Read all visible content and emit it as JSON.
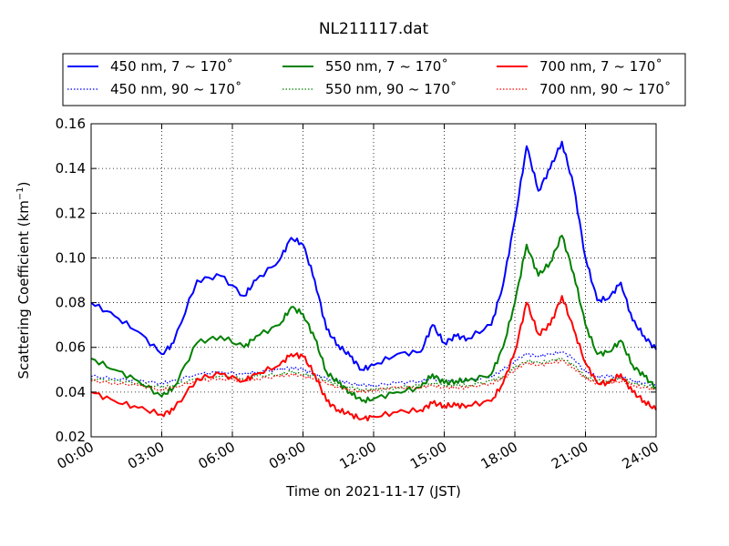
{
  "chart_data": {
    "type": "line",
    "title": "NL211117.dat",
    "xlabel": "Time on 2021-11-17 (JST)",
    "ylabel": "Scattering Coefficient (km",
    "ylabel_sup": "−1",
    "ylabel_end": ")",
    "xlim": [
      "00:00",
      "24:00"
    ],
    "ylim": [
      0.02,
      0.16
    ],
    "grid": true,
    "legend_placement": "top (above plot)",
    "x_ticks": [
      "00:00",
      "03:00",
      "06:00",
      "09:00",
      "12:00",
      "15:00",
      "18:00",
      "21:00",
      "24:00"
    ],
    "y_ticks": [
      "0.02",
      "0.04",
      "0.06",
      "0.08",
      "0.10",
      "0.12",
      "0.14",
      "0.16"
    ],
    "x": [
      "00:00",
      "01:00",
      "02:00",
      "03:00",
      "03:30",
      "04:30",
      "05:30",
      "06:30",
      "07:00",
      "08:00",
      "08:30",
      "09:00",
      "09:30",
      "10:00",
      "10:30",
      "11:00",
      "11:30",
      "12:00",
      "13:00",
      "14:00",
      "14:30",
      "15:00",
      "15:30",
      "16:00",
      "17:00",
      "17:30",
      "18:00",
      "18:30",
      "19:00",
      "19:30",
      "20:00",
      "20:30",
      "21:00",
      "21:30",
      "22:00",
      "22:30",
      "23:00",
      "23:30",
      "24:00"
    ],
    "series": [
      {
        "name": "450 nm, 7 ~ 170˚",
        "color": "#0000ff",
        "style": "solid",
        "values": [
          0.08,
          0.074,
          0.067,
          0.057,
          0.062,
          0.09,
          0.092,
          0.083,
          0.09,
          0.099,
          0.109,
          0.106,
          0.09,
          0.068,
          0.061,
          0.056,
          0.05,
          0.052,
          0.057,
          0.058,
          0.07,
          0.062,
          0.065,
          0.064,
          0.07,
          0.088,
          0.117,
          0.15,
          0.13,
          0.14,
          0.152,
          0.132,
          0.1,
          0.081,
          0.082,
          0.089,
          0.072,
          0.065,
          0.059
        ]
      },
      {
        "name": "450 nm, 90 ~ 170˚",
        "color": "#0000ff",
        "style": "dotted",
        "values": [
          0.047,
          0.046,
          0.045,
          0.044,
          0.045,
          0.048,
          0.049,
          0.048,
          0.049,
          0.05,
          0.051,
          0.05,
          0.048,
          0.046,
          0.045,
          0.044,
          0.043,
          0.043,
          0.044,
          0.045,
          0.046,
          0.045,
          0.045,
          0.045,
          0.047,
          0.05,
          0.054,
          0.057,
          0.056,
          0.057,
          0.058,
          0.055,
          0.049,
          0.047,
          0.047,
          0.047,
          0.045,
          0.044,
          0.043
        ]
      },
      {
        "name": "550 nm, 7 ~ 170˚",
        "color": "#008000",
        "style": "solid",
        "values": [
          0.055,
          0.05,
          0.045,
          0.038,
          0.042,
          0.062,
          0.065,
          0.06,
          0.065,
          0.07,
          0.078,
          0.075,
          0.064,
          0.049,
          0.044,
          0.04,
          0.036,
          0.037,
          0.04,
          0.042,
          0.048,
          0.044,
          0.045,
          0.045,
          0.048,
          0.06,
          0.08,
          0.106,
          0.092,
          0.098,
          0.11,
          0.093,
          0.07,
          0.057,
          0.058,
          0.063,
          0.052,
          0.047,
          0.042
        ]
      },
      {
        "name": "550 nm, 90 ~ 170˚",
        "color": "#008000",
        "style": "dotted",
        "values": [
          0.046,
          0.045,
          0.044,
          0.042,
          0.043,
          0.046,
          0.047,
          0.046,
          0.047,
          0.048,
          0.049,
          0.048,
          0.047,
          0.045,
          0.043,
          0.042,
          0.041,
          0.041,
          0.042,
          0.043,
          0.044,
          0.043,
          0.043,
          0.043,
          0.045,
          0.047,
          0.051,
          0.054,
          0.053,
          0.054,
          0.055,
          0.052,
          0.047,
          0.045,
          0.045,
          0.046,
          0.044,
          0.043,
          0.042
        ]
      },
      {
        "name": "700 nm, 7 ~ 170˚",
        "color": "#ff0000",
        "style": "solid",
        "values": [
          0.04,
          0.036,
          0.033,
          0.03,
          0.032,
          0.046,
          0.048,
          0.045,
          0.048,
          0.052,
          0.057,
          0.056,
          0.048,
          0.036,
          0.032,
          0.03,
          0.028,
          0.029,
          0.031,
          0.032,
          0.035,
          0.034,
          0.034,
          0.034,
          0.036,
          0.044,
          0.058,
          0.08,
          0.066,
          0.07,
          0.083,
          0.068,
          0.053,
          0.044,
          0.044,
          0.048,
          0.04,
          0.036,
          0.032
        ]
      },
      {
        "name": "700 nm, 90 ~ 170˚",
        "color": "#ff0000",
        "style": "dotted",
        "values": [
          0.045,
          0.044,
          0.043,
          0.041,
          0.042,
          0.045,
          0.046,
          0.045,
          0.046,
          0.047,
          0.048,
          0.047,
          0.046,
          0.044,
          0.042,
          0.041,
          0.04,
          0.041,
          0.042,
          0.042,
          0.043,
          0.042,
          0.042,
          0.042,
          0.044,
          0.046,
          0.05,
          0.053,
          0.052,
          0.053,
          0.054,
          0.051,
          0.046,
          0.044,
          0.044,
          0.045,
          0.043,
          0.042,
          0.041
        ]
      }
    ]
  }
}
